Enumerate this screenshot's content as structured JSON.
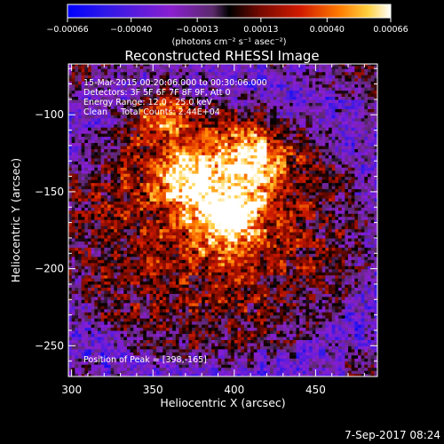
{
  "chart_data": {
    "type": "heatmap",
    "title": "Reconstructed RHESSI Image",
    "xlabel": "Heliocentric X (arcsec)",
    "ylabel": "Heliocentric Y (arcsec)",
    "xlim": [
      298,
      488
    ],
    "ylim": [
      -270,
      -67
    ],
    "x_ticks": [
      300,
      350,
      400,
      450
    ],
    "y_ticks": [
      -100,
      -150,
      -200,
      -250
    ],
    "colorbar": {
      "units_label": "(photons cm⁻² s⁻¹ asec⁻²)",
      "range": [
        -0.00066,
        0.00066
      ],
      "tick_values": [
        -0.00066,
        -0.0004,
        -0.00013,
        0.00013,
        0.0004,
        0.00066
      ],
      "tick_labels": [
        "−0.00066",
        "−0.00040",
        "−0.00013",
        "0.00013",
        "0.00040",
        "0.00066"
      ]
    },
    "annotations": [
      "15-Mar-2015 00:20:06.000 to 00:30:06.000",
      "Detectors: 3F 5F 6F 7F 8F 9F, Att 0",
      "Energy Range: 12.0 - 25.0 keV",
      "Clean     Total Counts: 2.44E+04"
    ],
    "peak_label": "Position of Peak = [398,-165]",
    "peak": [
      398,
      -165
    ],
    "sources": [
      {
        "x": 398,
        "y": -165,
        "peak": 0.00066
      },
      {
        "x": 411,
        "y": -127,
        "peak": 0.0006
      },
      {
        "x": 373,
        "y": -140,
        "peak": 0.00055
      },
      {
        "x": 355,
        "y": -98,
        "peak": 0.00045
      }
    ],
    "footer": "7-Sep-2017 08:24"
  }
}
